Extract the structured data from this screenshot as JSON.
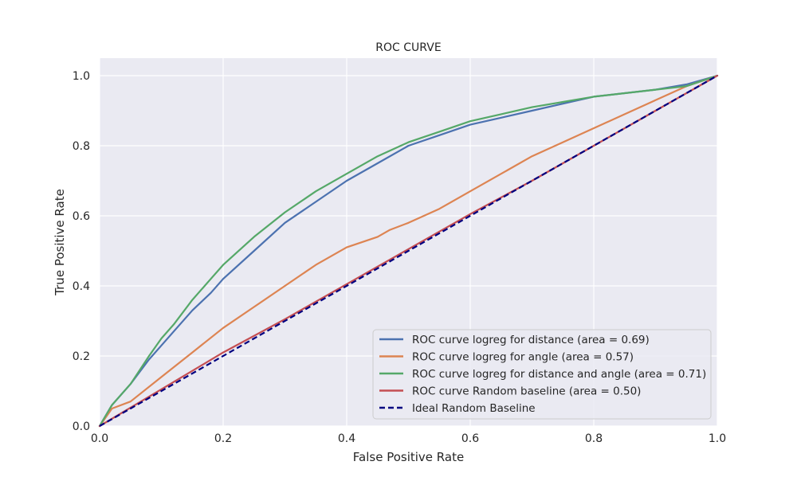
{
  "chart_data": {
    "type": "line",
    "title": "ROC CURVE",
    "xlabel": "False Positive Rate",
    "ylabel": "True Positive Rate",
    "xlim": [
      0.0,
      1.0
    ],
    "ylim": [
      0.0,
      1.05
    ],
    "xticks": [
      0.0,
      0.2,
      0.4,
      0.6,
      0.8,
      1.0
    ],
    "yticks": [
      0.0,
      0.2,
      0.4,
      0.6,
      0.8,
      1.0
    ],
    "xtick_labels": [
      "0.0",
      "0.2",
      "0.4",
      "0.6",
      "0.8",
      "1.0"
    ],
    "ytick_labels": [
      "0.0",
      "0.2",
      "0.4",
      "0.6",
      "0.8",
      "1.0"
    ],
    "grid": true,
    "legend_position": "lower-right",
    "series": [
      {
        "name": "ROC curve logreg for distance (area = 0.69)",
        "color": "#4c72b0",
        "dashed": false,
        "x": [
          0.0,
          0.02,
          0.05,
          0.08,
          0.1,
          0.12,
          0.15,
          0.18,
          0.2,
          0.25,
          0.3,
          0.35,
          0.4,
          0.45,
          0.5,
          0.55,
          0.6,
          0.65,
          0.7,
          0.75,
          0.8,
          0.85,
          0.9,
          0.95,
          1.0
        ],
        "y": [
          0.0,
          0.06,
          0.12,
          0.19,
          0.23,
          0.27,
          0.33,
          0.38,
          0.42,
          0.5,
          0.58,
          0.64,
          0.7,
          0.75,
          0.8,
          0.83,
          0.86,
          0.88,
          0.9,
          0.92,
          0.94,
          0.95,
          0.96,
          0.975,
          1.0
        ]
      },
      {
        "name": "ROC curve logreg for angle (area = 0.57)",
        "color": "#dd8452",
        "dashed": false,
        "x": [
          0.0,
          0.02,
          0.05,
          0.1,
          0.15,
          0.2,
          0.25,
          0.3,
          0.35,
          0.4,
          0.45,
          0.47,
          0.5,
          0.55,
          0.6,
          0.65,
          0.7,
          0.75,
          0.8,
          0.85,
          0.9,
          0.95,
          1.0
        ],
        "y": [
          0.0,
          0.05,
          0.07,
          0.14,
          0.21,
          0.28,
          0.34,
          0.4,
          0.46,
          0.51,
          0.54,
          0.56,
          0.58,
          0.62,
          0.67,
          0.72,
          0.77,
          0.81,
          0.85,
          0.89,
          0.93,
          0.97,
          1.0
        ]
      },
      {
        "name": "ROC curve logreg for distance and angle (area = 0.71)",
        "color": "#55a868",
        "dashed": false,
        "x": [
          0.0,
          0.02,
          0.05,
          0.08,
          0.1,
          0.12,
          0.15,
          0.18,
          0.2,
          0.25,
          0.3,
          0.35,
          0.4,
          0.45,
          0.5,
          0.55,
          0.6,
          0.65,
          0.7,
          0.75,
          0.8,
          0.85,
          0.9,
          0.95,
          1.0
        ],
        "y": [
          0.0,
          0.06,
          0.12,
          0.2,
          0.25,
          0.29,
          0.36,
          0.42,
          0.46,
          0.54,
          0.61,
          0.67,
          0.72,
          0.77,
          0.81,
          0.84,
          0.87,
          0.89,
          0.91,
          0.925,
          0.94,
          0.95,
          0.96,
          0.97,
          1.0
        ]
      },
      {
        "name": "ROC curve Random baseline (area = 0.50)",
        "color": "#c44e52",
        "dashed": false,
        "x": [
          0.0,
          0.1,
          0.2,
          0.3,
          0.4,
          0.5,
          0.6,
          0.7,
          0.8,
          0.9,
          1.0
        ],
        "y": [
          0.0,
          0.105,
          0.21,
          0.305,
          0.405,
          0.505,
          0.605,
          0.7,
          0.8,
          0.9,
          1.0
        ]
      },
      {
        "name": "Ideal Random Baseline",
        "color": "#000080",
        "dashed": true,
        "x": [
          0.0,
          1.0
        ],
        "y": [
          0.0,
          1.0
        ]
      }
    ]
  }
}
